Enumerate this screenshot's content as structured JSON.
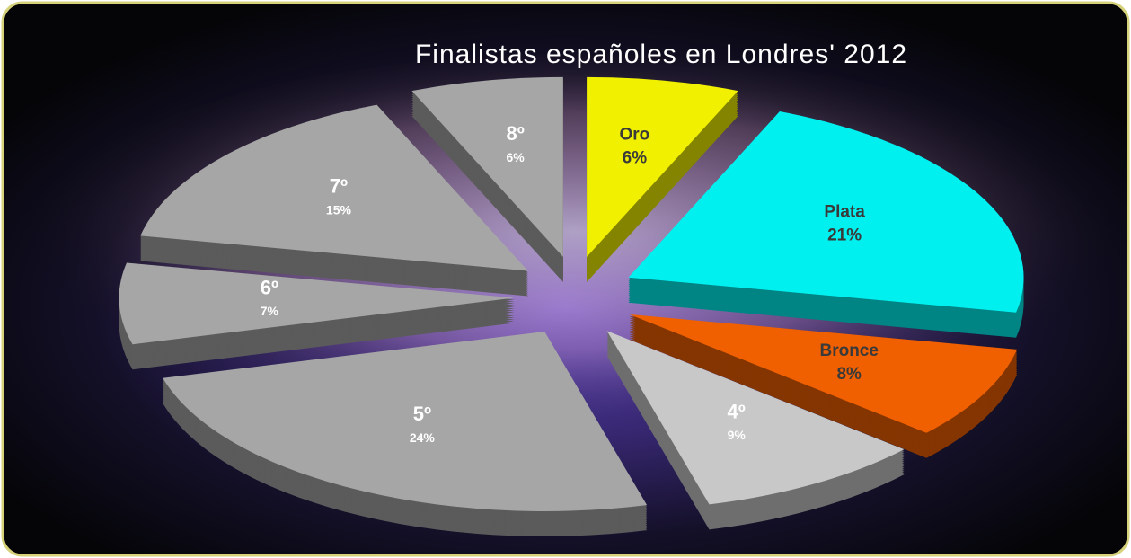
{
  "chart_data": {
    "type": "pie",
    "title": "Finalistas españoles en Londres' 2012",
    "categories": [
      "Oro",
      "Plata",
      "Bronce",
      "4º",
      "5º",
      "6º",
      "7º",
      "8º"
    ],
    "values": [
      6,
      21,
      8,
      9,
      24,
      7,
      15,
      6
    ],
    "value_labels": [
      "6%",
      "21%",
      "8%",
      "9%",
      "24%",
      "7%",
      "15%",
      "6%"
    ],
    "colors": [
      "#f0f000",
      "#00f0f0",
      "#f06000",
      "#c8c8c8",
      "#a6a6a6",
      "#a6a6a6",
      "#a6a6a6",
      "#a6a6a6"
    ]
  }
}
